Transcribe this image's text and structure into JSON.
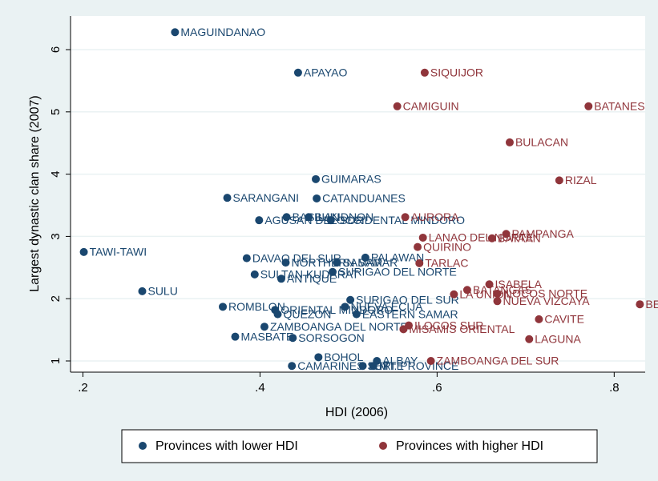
{
  "chart_data": {
    "type": "scatter",
    "x_label": "HDI (2006)",
    "y_label": "Largest dynastic clan share (2007)",
    "xlim": [
      0.186,
      0.835
    ],
    "ylim": [
      0.82,
      6.54
    ],
    "xticks": [
      {
        "value": 0.2,
        "label": ".2"
      },
      {
        "value": 0.4,
        "label": ".4"
      },
      {
        "value": 0.6,
        "label": ".6"
      },
      {
        "value": 0.8,
        "label": ".8"
      }
    ],
    "yticks": [
      1,
      2,
      3,
      4,
      5,
      6
    ],
    "grid": true,
    "legend_position": "bottom",
    "series": [
      {
        "name": "Provinces with lower HDI",
        "color": "#1a476f",
        "x": [
          0.304,
          0.443,
          0.463,
          0.363,
          0.464,
          0.399,
          0.43,
          0.455,
          0.48,
          0.201,
          0.385,
          0.519,
          0.429,
          0.487,
          0.482,
          0.394,
          0.424,
          0.267,
          0.358,
          0.417,
          0.42,
          0.496,
          0.509,
          0.372,
          0.437,
          0.405,
          0.466,
          0.436,
          0.532,
          0.516,
          0.528,
          0.502
        ],
        "values": [
          6.28,
          5.63,
          3.92,
          3.62,
          3.61,
          3.26,
          3.31,
          3.31,
          3.26,
          2.75,
          2.65,
          2.66,
          2.58,
          2.58,
          2.43,
          2.39,
          2.32,
          2.12,
          1.87,
          1.82,
          1.75,
          1.87,
          1.75,
          1.39,
          1.37,
          1.55,
          1.06,
          0.92,
          1.0,
          0.92,
          0.92,
          1.98
        ],
        "labels": [
          "MAGUINDANAO",
          "APAYAO",
          "GUIMARAS",
          "SARANGANI",
          "CATANDUANES",
          "AGUSAN DEL SUR",
          "BASILAN",
          "BUKIDNON",
          "OCCIDENTAL MINDORO",
          "TAWI-TAWI",
          "DAVAO DEL SUR",
          "PALAWAN",
          "NORTHERN SAMAR",
          "SAMAR",
          "SURIGAO DEL NORTE",
          "SULTAN KUDARAT",
          "ANTIQUE",
          "SULU",
          "ROMBLON",
          "ORIENTAL MINDORO",
          "QUEZON",
          "NUEVA ECIJA",
          "EASTERN SAMAR",
          "MASBATE",
          "SORSOGON",
          "ZAMBOANGA DEL NORTE",
          "BOHOL",
          "CAMARINES SUR",
          "ALBAY",
          "LEYTE",
          "MT. PROVINCE",
          "SURIGAO DEL SUR"
        ]
      },
      {
        "name": "Provinces with higher HDI",
        "color": "#90353b",
        "x": [
          0.586,
          0.555,
          0.771,
          0.682,
          0.738,
          0.564,
          0.584,
          0.678,
          0.662,
          0.578,
          0.58,
          0.634,
          0.668,
          0.668,
          0.829,
          0.715,
          0.704,
          0.593,
          0.562,
          0.568,
          0.619,
          0.659
        ],
        "values": [
          5.63,
          5.09,
          5.09,
          4.51,
          3.9,
          3.31,
          2.98,
          3.04,
          2.97,
          2.83,
          2.57,
          2.14,
          2.08,
          1.96,
          1.91,
          1.67,
          1.35,
          1.0,
          1.51,
          1.57,
          2.07,
          2.23
        ],
        "labels": [
          "SIQUIJOR",
          "CAMIGUIN",
          "BATANES",
          "BULACAN",
          "RIZAL",
          "AURORA",
          "LANAO DEL NORTE",
          "PAMPANGA",
          "BATAAN",
          "QUIRINO",
          "TARLAC",
          "BATANGAS",
          "ILOCOS NORTE",
          "NUEVA VIZCAYA",
          "BENGUET",
          "CAVITE",
          "LAGUNA",
          "ZAMBOANGA DEL SUR",
          "MISAMIS ORIENTAL",
          "ILOCOS SUR",
          "LA UNION",
          "ISABELA"
        ]
      }
    ]
  }
}
